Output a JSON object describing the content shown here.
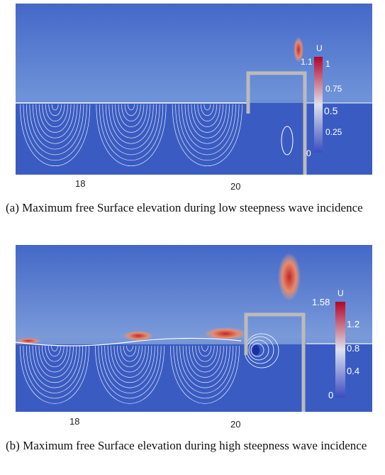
{
  "figure": {
    "panels": [
      {
        "colorbar": {
          "label": "U",
          "max_label": "1.1",
          "ticks": [
            "1",
            "0.75",
            "0.5",
            "0.25",
            "0"
          ]
        },
        "x_ticks": [
          "18",
          "20"
        ],
        "caption": "(a) Maximum free Surface elevation during low steepness wave incidence"
      },
      {
        "colorbar": {
          "label": "U",
          "max_label": "1.58",
          "ticks": [
            "1.2",
            "0.8",
            "0.4",
            "0"
          ]
        },
        "x_ticks": [
          "18",
          "20"
        ],
        "caption": "(b) Maximum free Surface elevation during high steepness wave incidence"
      }
    ]
  }
}
